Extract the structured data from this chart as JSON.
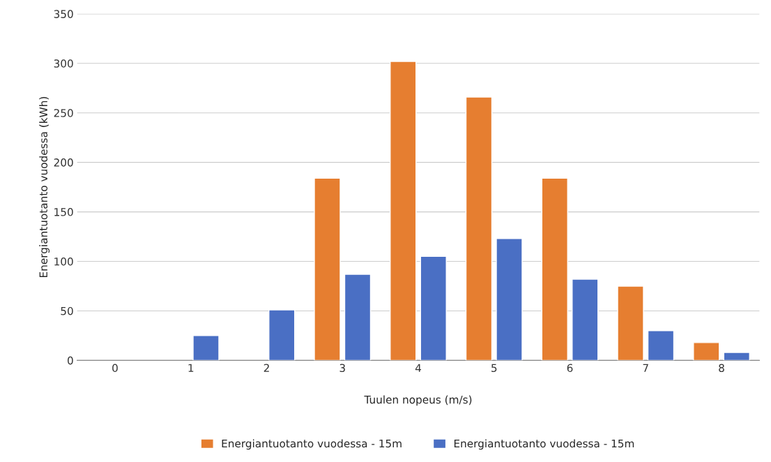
{
  "chart_data": {
    "type": "bar",
    "xlabel": "Tuulen nopeus (m/s)",
    "ylabel": "Energiantuotanto vuodessa (kWh)",
    "categories": [
      "0",
      "1",
      "2",
      "3",
      "4",
      "5",
      "6",
      "7",
      "8"
    ],
    "series": [
      {
        "name": "Energiantuotanto vuodessa - 15m",
        "color": "#e67e30",
        "values": [
          null,
          null,
          null,
          184,
          302,
          266,
          184,
          75,
          18
        ]
      },
      {
        "name": "Energiantuotanto vuodessa - 15m",
        "color": "#4a6fc4",
        "values": [
          null,
          25,
          51,
          87,
          105,
          123,
          82,
          30,
          8
        ]
      }
    ],
    "ylim": [
      0,
      350
    ],
    "yticks": [
      0,
      50,
      100,
      150,
      200,
      250,
      300,
      350
    ],
    "grid": "y",
    "legend": "bottom"
  }
}
